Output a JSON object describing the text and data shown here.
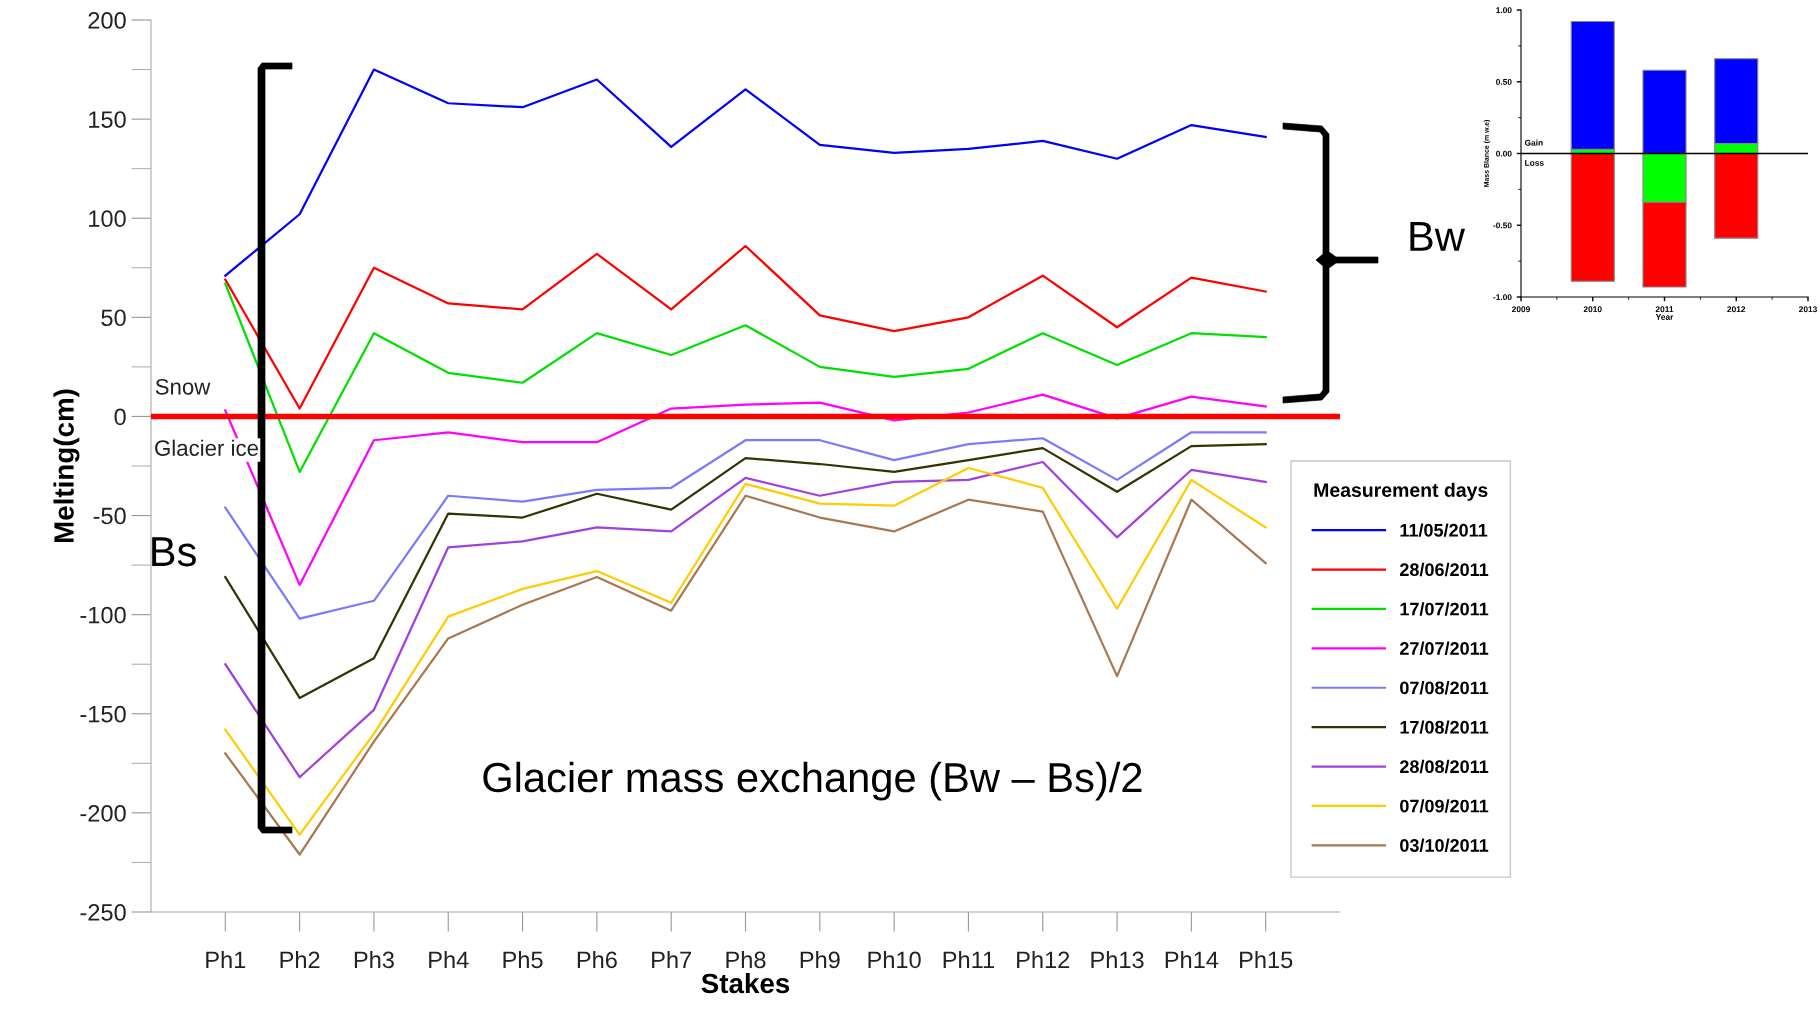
{
  "chart_data": [
    {
      "type": "line",
      "xlabel": "Stakes",
      "ylabel": "Melting(cm)",
      "legend_title": "Measurement days",
      "legend": "right",
      "grid": false,
      "marker": "none",
      "line_style": "solid",
      "categories": [
        "Ph1",
        "Ph2",
        "Ph3",
        "Ph4",
        "Ph5",
        "Ph6",
        "Ph7",
        "Ph8",
        "Ph9",
        "Ph10",
        "Ph11",
        "Ph12",
        "Ph13",
        "Ph14",
        "Ph15"
      ],
      "ylim": [
        -250,
        200
      ],
      "yticks": [
        -250,
        -200,
        -150,
        -100,
        -50,
        0,
        50,
        100,
        150,
        200
      ],
      "ref_lines": [
        {
          "axis": "y",
          "value": 0,
          "color": "#ff0000"
        }
      ],
      "annotations": [
        "Snow",
        "Glacier ice",
        "Bs",
        "Bw",
        "Glacier mass exchange (Bw – Bs)/2"
      ],
      "series": [
        {
          "name": "11/05/2011",
          "color": "#0000ff",
          "values": [
            71,
            102,
            175,
            158,
            156,
            170,
            136,
            165,
            137,
            133,
            135,
            139,
            130,
            147,
            141
          ]
        },
        {
          "name": "28/06/2011",
          "color": "#ff0000",
          "values": [
            69,
            4,
            75,
            57,
            54,
            82,
            54,
            86,
            51,
            43,
            50,
            71,
            45,
            70,
            63
          ]
        },
        {
          "name": "17/07/2011",
          "color": "#00e000",
          "values": [
            67,
            -28,
            42,
            22,
            17,
            42,
            31,
            46,
            25,
            20,
            24,
            42,
            26,
            42,
            40
          ]
        },
        {
          "name": "27/07/2011",
          "color": "#ff00ff",
          "values": [
            3,
            -85,
            -12,
            -8,
            -13,
            -13,
            4,
            6,
            7,
            -2,
            2,
            11,
            -1,
            10,
            5
          ]
        },
        {
          "name": "07/08/2011",
          "color": "#7a7aff",
          "values": [
            -46,
            -102,
            -93,
            -40,
            -43,
            -37,
            -36,
            -12,
            -12,
            -22,
            -14,
            -11,
            -32,
            -8,
            -8
          ]
        },
        {
          "name": "17/08/2011",
          "color": "#333300",
          "values": [
            -81,
            -142,
            -122,
            -49,
            -51,
            -39,
            -47,
            -21,
            -24,
            -28,
            -22,
            -16,
            -38,
            -15,
            -14
          ]
        },
        {
          "name": "28/08/2011",
          "color": "#a040e0",
          "values": [
            -125,
            -182,
            -148,
            -66,
            -63,
            -56,
            -58,
            -31,
            -40,
            -33,
            -32,
            -23,
            -61,
            -27,
            -33
          ]
        },
        {
          "name": "07/09/2011",
          "color": "#ffcc00",
          "values": [
            -158,
            -211,
            -160,
            -101,
            -87,
            -78,
            -94,
            -34,
            -44,
            -45,
            -26,
            -36,
            -97,
            -32,
            -56
          ]
        },
        {
          "name": "03/10/2011",
          "color": "#a87850",
          "values": [
            -170,
            -221,
            -164,
            -112,
            -95,
            -81,
            -98,
            -40,
            -51,
            -58,
            -42,
            -48,
            -131,
            -42,
            -74
          ]
        }
      ]
    },
    {
      "type": "bar",
      "stacked": true,
      "xlabel": "Year",
      "ylabel": "Mass Blance (m w.e)",
      "grid": false,
      "x": [
        2010,
        2011,
        2012
      ],
      "xlim": [
        2009,
        2013
      ],
      "xticks": [
        2009,
        2010,
        2011,
        2012,
        2013
      ],
      "ylim": [
        -1,
        1
      ],
      "yticks": [
        {
          "value": -1,
          "label": "-1.00"
        },
        {
          "value": -0.5,
          "label": "-0.50"
        },
        {
          "value": 0,
          "label": "0.00"
        },
        {
          "value": 0.5,
          "label": "0.50"
        },
        {
          "value": 1,
          "label": "1.00"
        }
      ],
      "ref_lines": [
        {
          "axis": "y",
          "value": 0,
          "color": "#000000"
        }
      ],
      "annotations": [
        "Gain",
        "Loss"
      ],
      "series": [
        {
          "color": "#00ff00",
          "values": [
            0.03,
            -0.34,
            0.07
          ]
        },
        {
          "color": "#0000ff",
          "values": [
            0.89,
            0.58,
            0.59
          ]
        },
        {
          "color": "#ff0000",
          "values": [
            -0.89,
            -0.59,
            -0.59
          ]
        }
      ]
    }
  ]
}
